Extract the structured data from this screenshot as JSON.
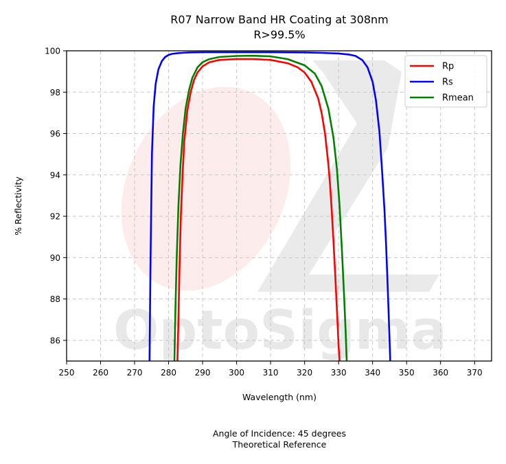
{
  "chart_data": {
    "type": "line",
    "title": "R07 Narrow Band HR Coating at 308nm",
    "subtitle": "R>99.5%",
    "xlabel": "Wavelength (nm)",
    "ylabel": "% Reflectivity",
    "xlim": [
      250,
      375
    ],
    "ylim": [
      85,
      100
    ],
    "xticks": [
      250,
      260,
      270,
      280,
      290,
      300,
      310,
      320,
      330,
      340,
      350,
      360,
      370
    ],
    "yticks": [
      86,
      88,
      90,
      92,
      94,
      96,
      98,
      100
    ],
    "grid": true,
    "legend_position": "top-right",
    "series": [
      {
        "name": "Rp",
        "color": "#ff0000",
        "x": [
          282.6,
          282.9,
          283.2,
          283.6,
          284.1,
          284.6,
          285.5,
          286.5,
          287.5,
          288.5,
          290,
          292,
          295,
          300,
          305,
          310,
          315,
          318,
          320,
          322,
          324,
          325,
          326,
          327,
          327.5,
          328,
          328.5,
          329,
          329.5,
          330,
          330.3
        ],
        "y": [
          85,
          87,
          89.5,
          92,
          94,
          95.6,
          97.1,
          98,
          98.6,
          98.95,
          99.25,
          99.45,
          99.56,
          99.6,
          99.6,
          99.56,
          99.4,
          99.2,
          98.95,
          98.5,
          97.7,
          97,
          96,
          94.5,
          93.5,
          92.2,
          90.8,
          89.2,
          87.5,
          85.7,
          85
        ]
      },
      {
        "name": "Rs",
        "color": "#0000ff",
        "x": [
          274.4,
          274.7,
          275.1,
          275.6,
          276.2,
          277,
          278,
          279,
          280,
          281,
          282.5,
          284,
          286,
          290,
          300,
          310,
          320,
          325,
          330,
          333,
          335,
          337,
          338.5,
          340,
          341,
          342,
          342.8,
          343.5,
          344,
          344.5,
          344.9,
          345.2
        ],
        "y": [
          85,
          90,
          95,
          97.3,
          98.4,
          99.1,
          99.5,
          99.7,
          99.8,
          99.85,
          99.88,
          99.9,
          99.92,
          99.93,
          99.93,
          99.93,
          99.92,
          99.9,
          99.87,
          99.82,
          99.75,
          99.55,
          99.2,
          98.5,
          97.6,
          96.1,
          94.2,
          92.3,
          90.5,
          88.3,
          86.5,
          85
        ]
      },
      {
        "name": "Rmean",
        "color": "#008000",
        "x": [
          281.7,
          282,
          282.4,
          282.9,
          283.5,
          284.2,
          285,
          286,
          287,
          288.5,
          290,
          292,
          295,
          300,
          305,
          310,
          315,
          320,
          323,
          325,
          327,
          328.5,
          329.5,
          330.3,
          331,
          331.6,
          332.1,
          332.4
        ],
        "y": [
          85,
          87.5,
          90,
          92.5,
          94.5,
          96,
          97.2,
          98.1,
          98.7,
          99.2,
          99.45,
          99.6,
          99.7,
          99.75,
          99.76,
          99.73,
          99.6,
          99.3,
          98.9,
          98.3,
          97.2,
          95.8,
          94.3,
          92.5,
          90.3,
          88.2,
          86.3,
          85
        ]
      }
    ],
    "notes": [
      "Angle of Incidence: 45 degrees",
      "Theoretical Reference"
    ],
    "watermark": "OptoSigma"
  }
}
